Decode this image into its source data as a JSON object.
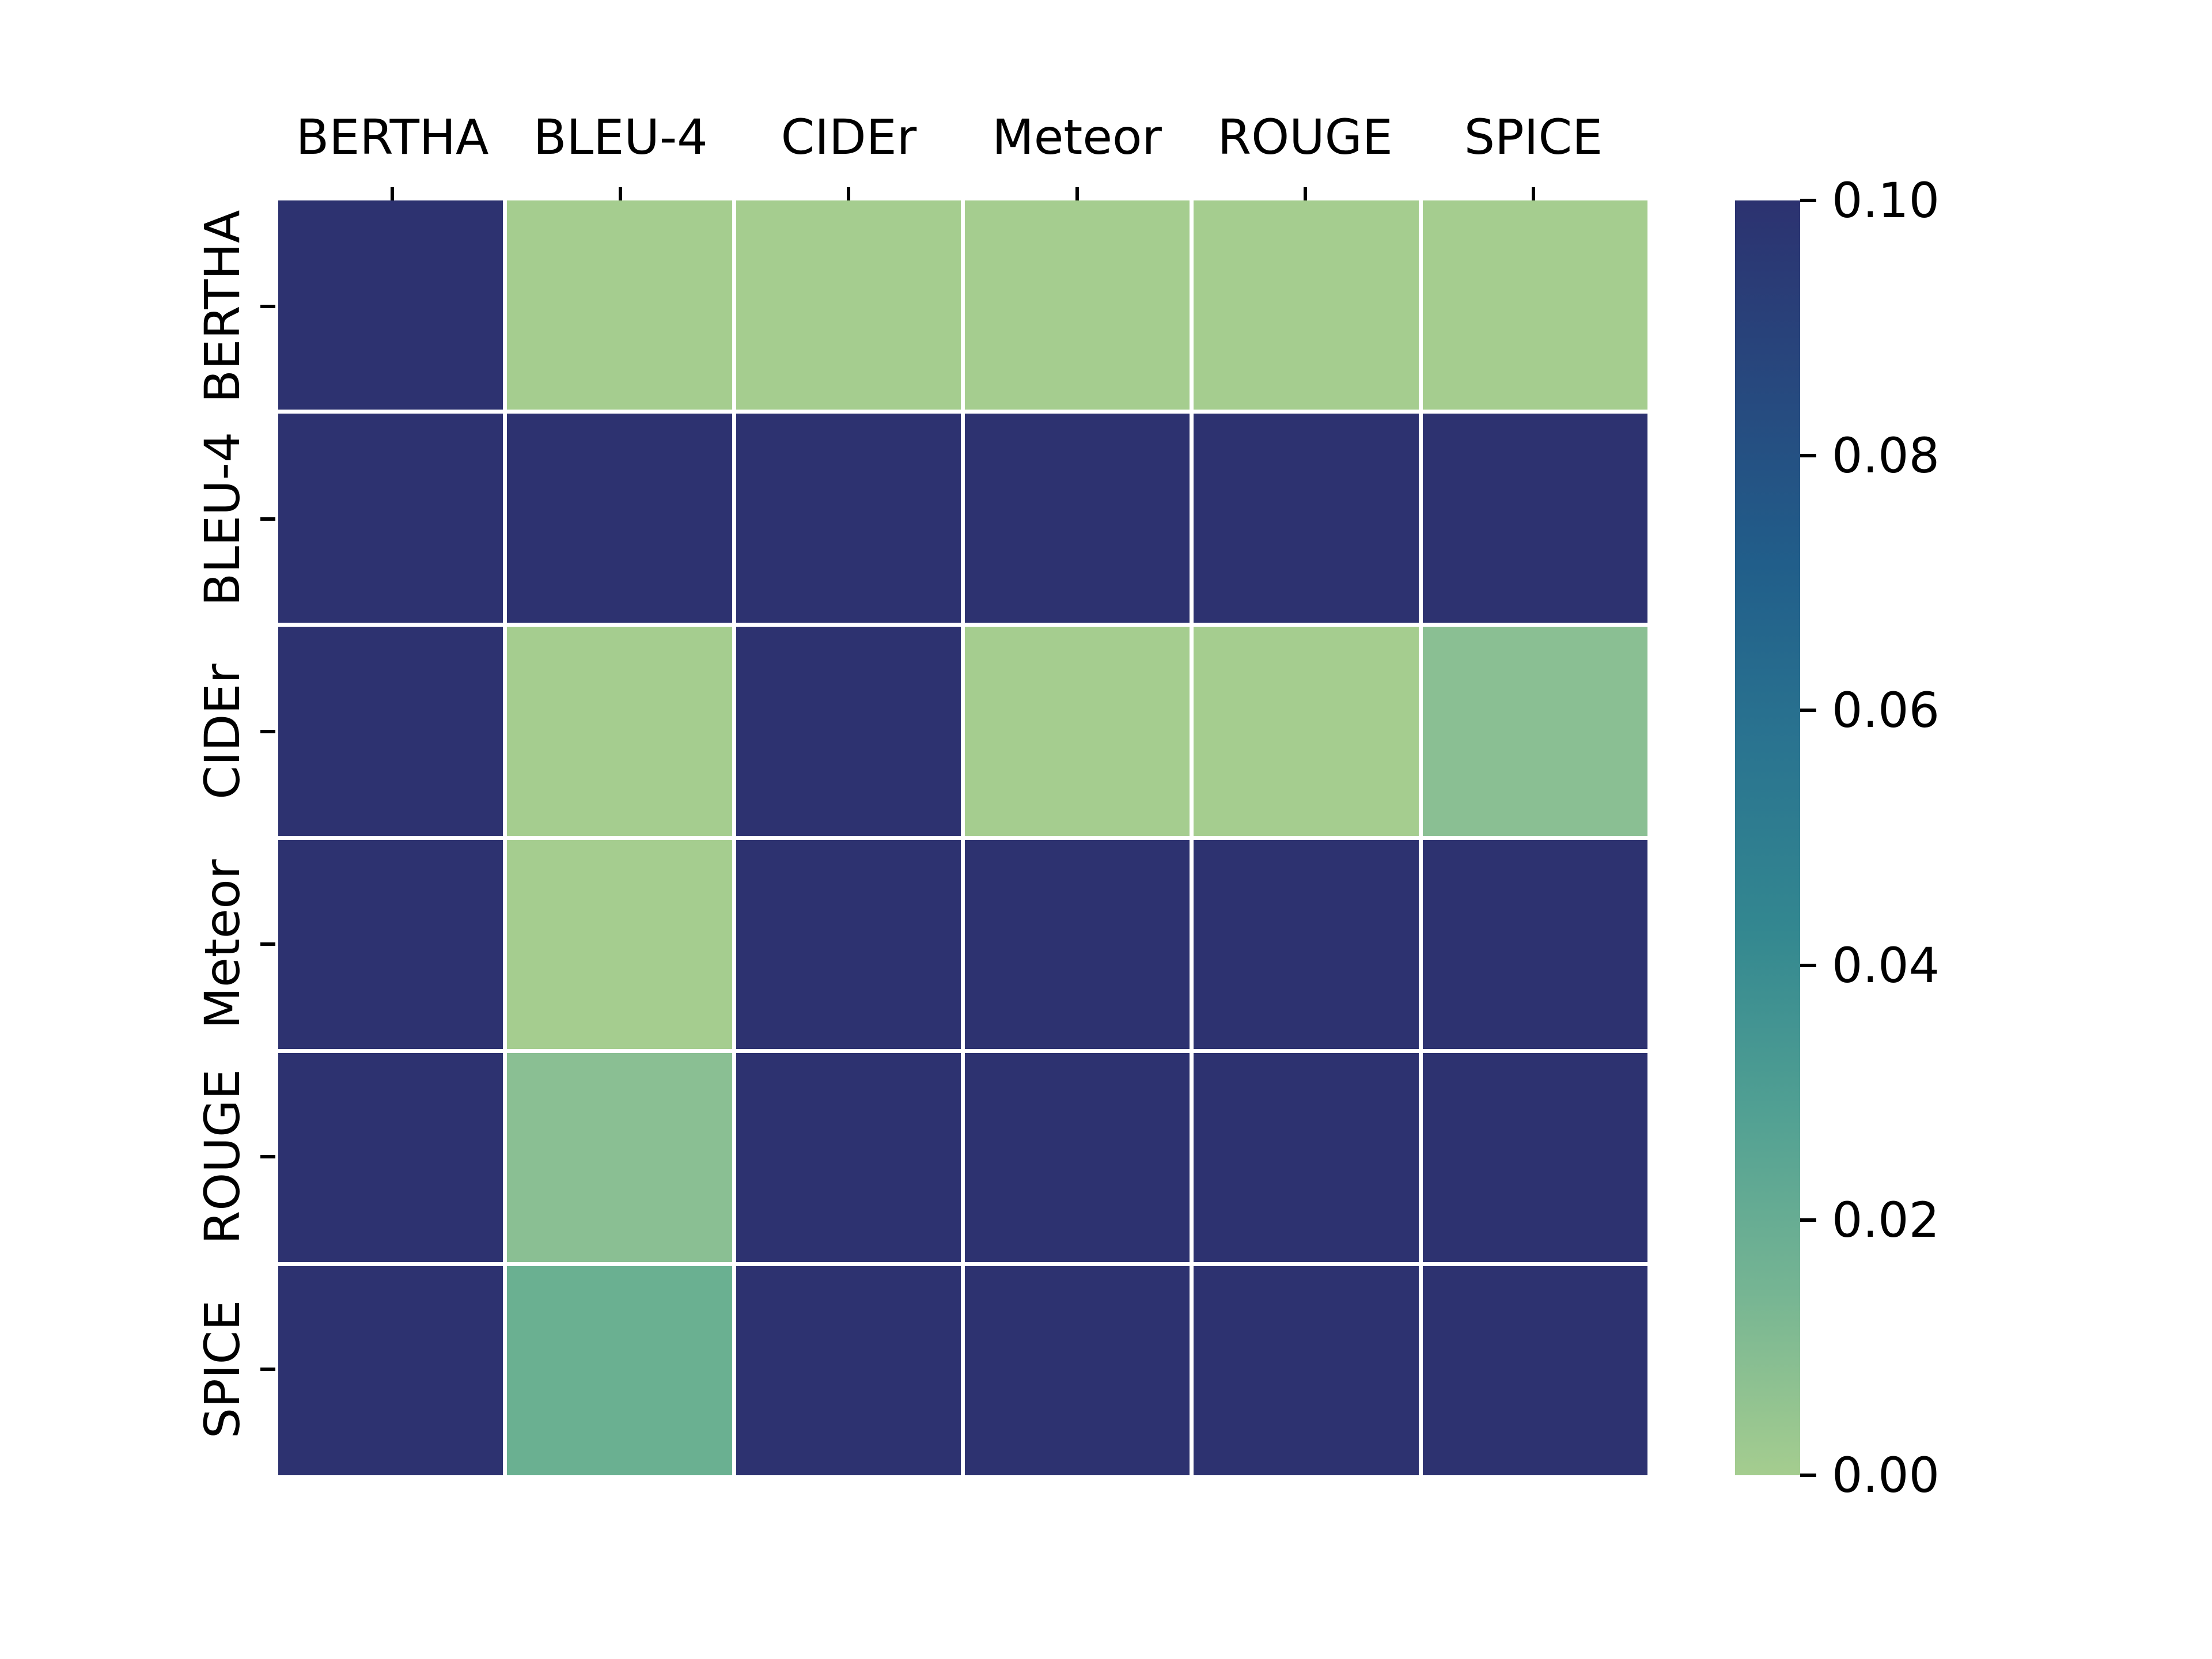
{
  "chart_data": {
    "type": "heatmap",
    "title": "",
    "xlabel": "",
    "ylabel": "",
    "x_axis_labels": [
      "BERTHA",
      "BLEU-4",
      "CIDEr",
      "Meteor",
      "ROUGE",
      "SPICE"
    ],
    "y_axis_labels": [
      "BERTHA",
      "BLEU-4",
      "CIDEr",
      "Meteor",
      "ROUGE",
      "SPICE"
    ],
    "vmin": 0.0,
    "vmax": 0.1,
    "colormap": "crest",
    "grid": "off",
    "gridline_color": "#ffffff",
    "values": [
      [
        0.1,
        0.005,
        0.005,
        0.005,
        0.005,
        0.005
      ],
      [
        0.1,
        0.1,
        0.1,
        0.1,
        0.1,
        0.1
      ],
      [
        0.1,
        0.005,
        0.1,
        0.005,
        0.005,
        0.013
      ],
      [
        0.1,
        0.005,
        0.1,
        0.1,
        0.1,
        0.1
      ],
      [
        0.1,
        0.013,
        0.1,
        0.1,
        0.1,
        0.1
      ],
      [
        0.1,
        0.025,
        0.1,
        0.1,
        0.1,
        0.1
      ]
    ],
    "cell_colors": [
      [
        "#2d3270",
        "#a5cd8f",
        "#a5cd8f",
        "#a5cd8f",
        "#a5cd8f",
        "#a5cd8f"
      ],
      [
        "#2d3270",
        "#2d3270",
        "#2d3270",
        "#2d3270",
        "#2d3270",
        "#2d3270"
      ],
      [
        "#2d3270",
        "#a5cd8f",
        "#2d3270",
        "#a5cd8f",
        "#a5cd8f",
        "#8abf93"
      ],
      [
        "#2d3270",
        "#a5cd8f",
        "#2d3270",
        "#2d3270",
        "#2d3270",
        "#2d3270"
      ],
      [
        "#2d3270",
        "#8abf93",
        "#2d3270",
        "#2d3270",
        "#2d3270",
        "#2d3270"
      ],
      [
        "#2d3270",
        "#6ab091",
        "#2d3270",
        "#2d3270",
        "#2d3270",
        "#2d3270"
      ]
    ],
    "colorbar": {
      "position": "right",
      "tick_labels": [
        "0.10",
        "0.08",
        "0.06",
        "0.04",
        "0.02",
        "0.00"
      ],
      "gradient_bottom_to_top": [
        "#a5cd8f",
        "#76b593",
        "#51a093",
        "#338790",
        "#2a7490",
        "#215e8a",
        "#27487e",
        "#2c3270"
      ]
    }
  }
}
